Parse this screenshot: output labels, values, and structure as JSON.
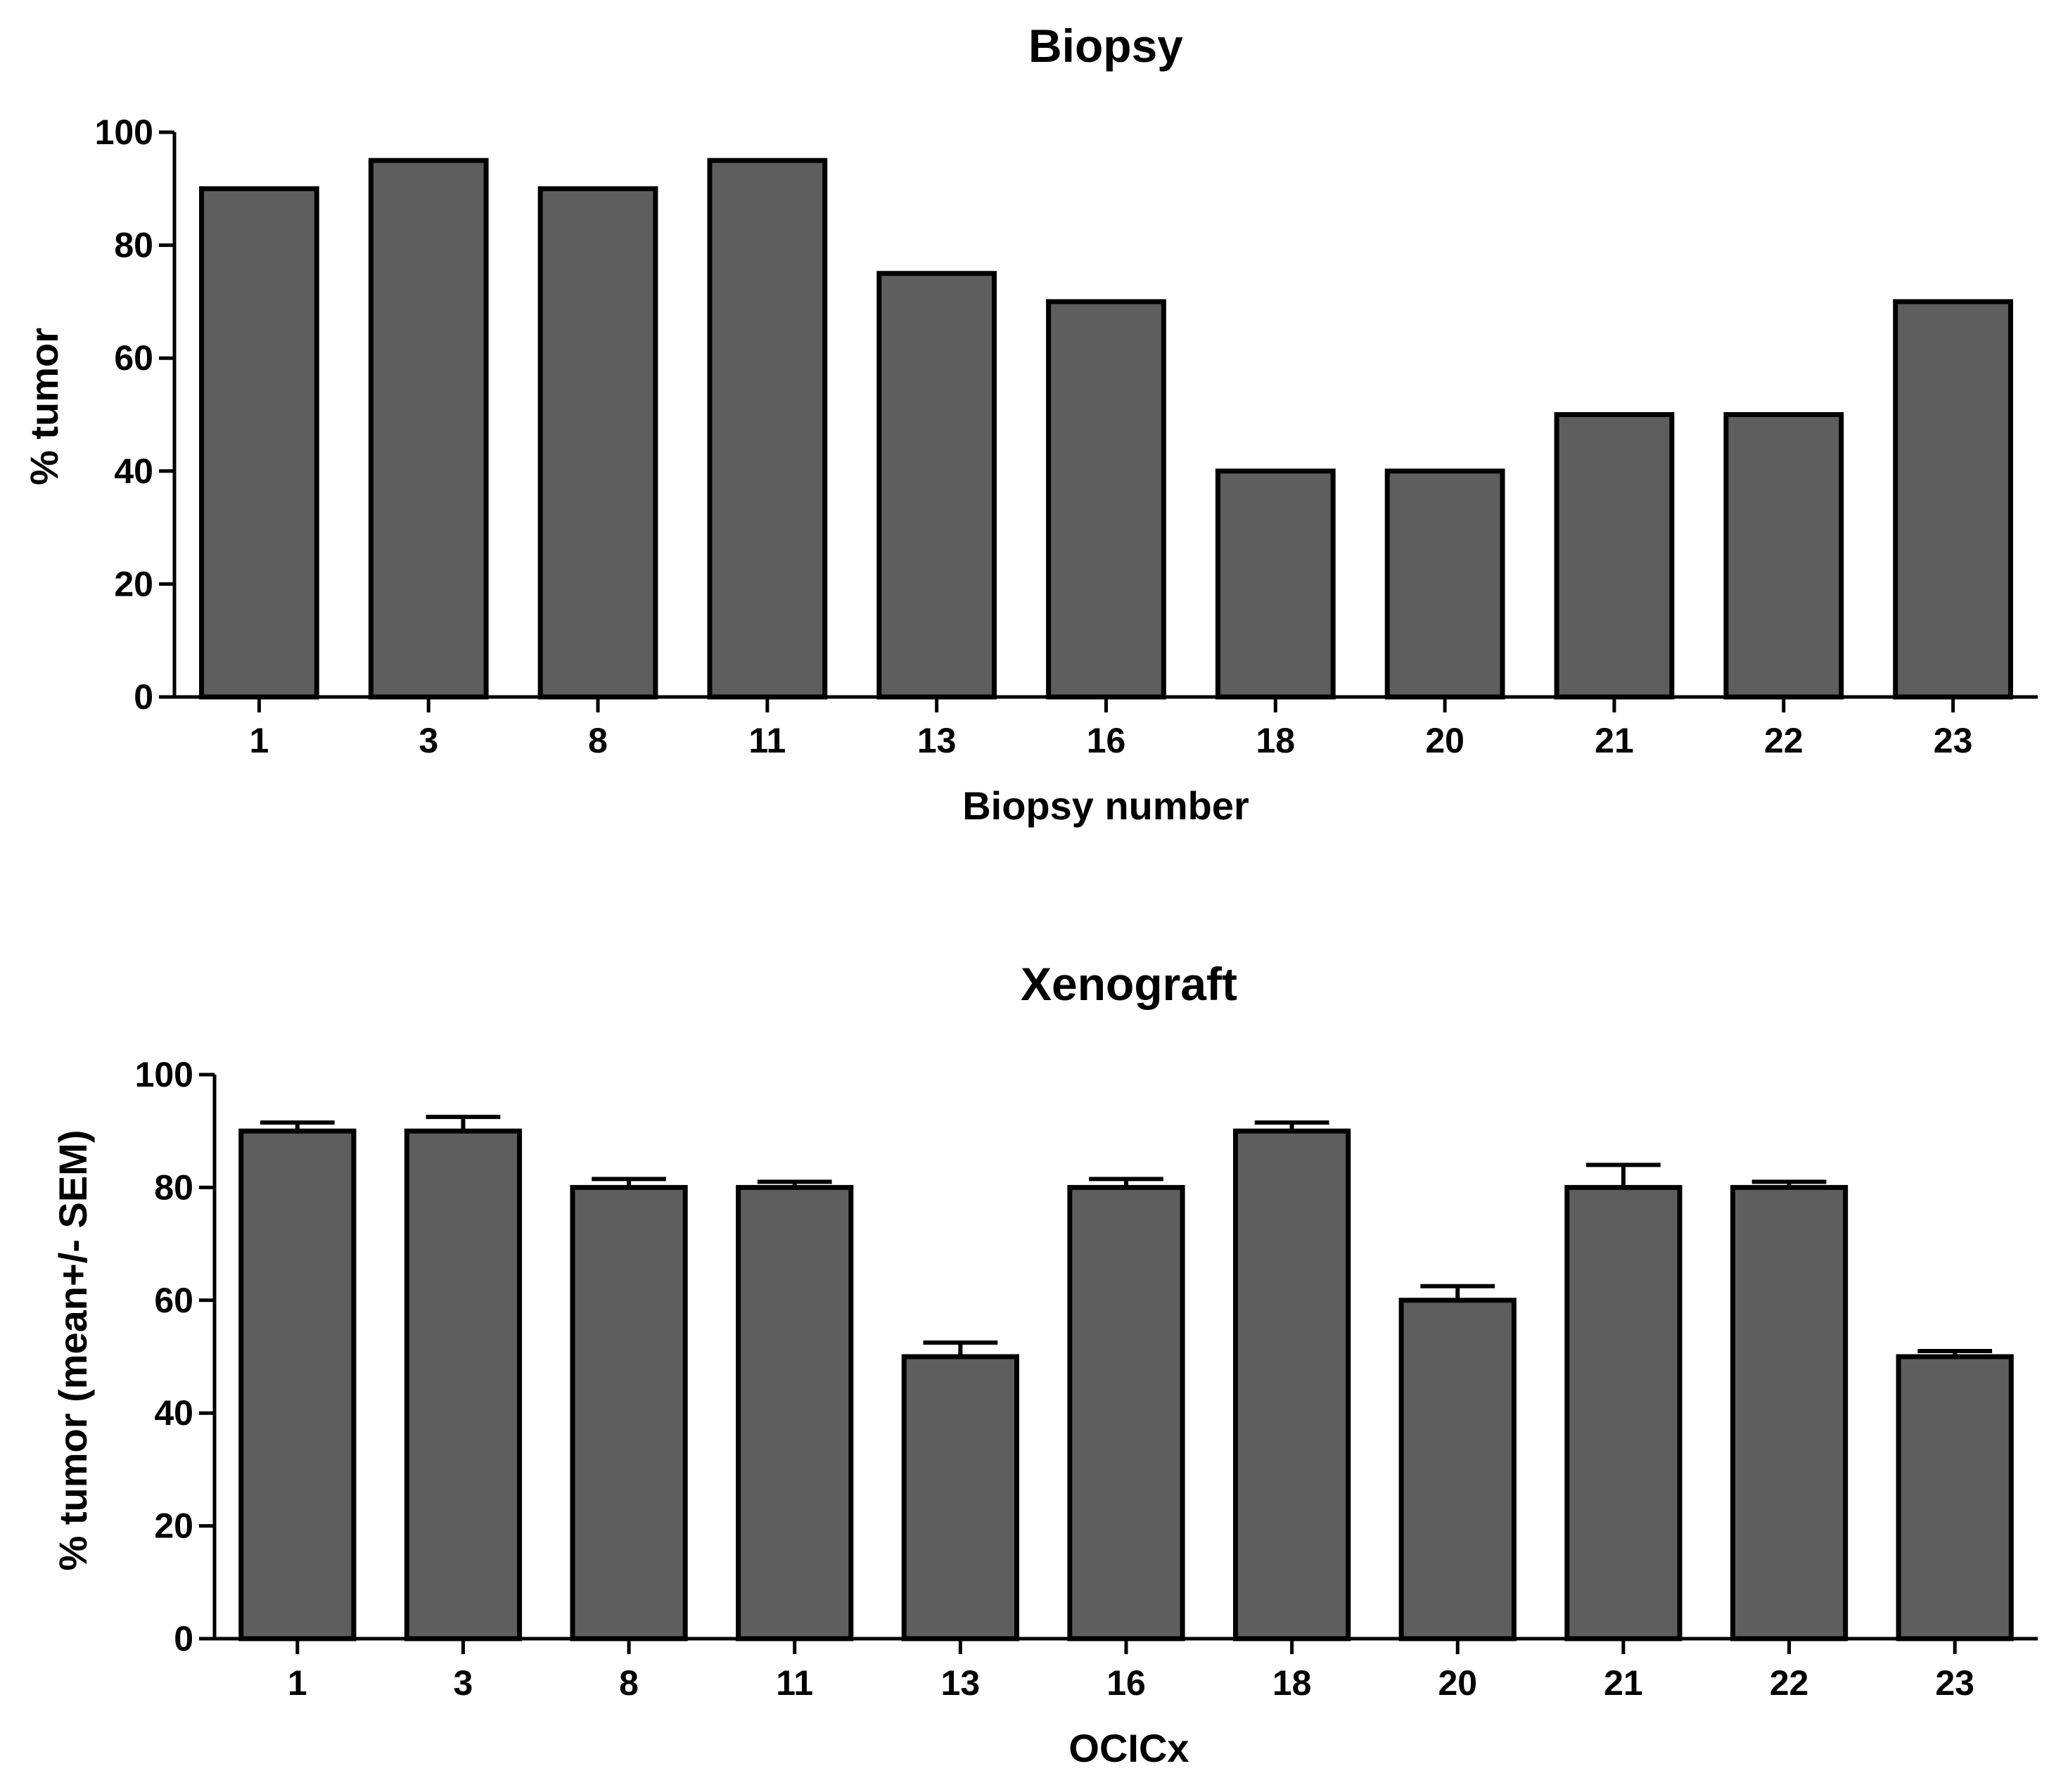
{
  "chart_data": [
    {
      "type": "bar",
      "title": "Biopsy",
      "xlabel": "Biopsy number",
      "ylabel": "% tumor",
      "ylim": [
        0,
        100
      ],
      "yticks": [
        0,
        20,
        40,
        60,
        80,
        100
      ],
      "categories": [
        "1",
        "3",
        "8",
        "11",
        "13",
        "16",
        "18",
        "20",
        "21",
        "22",
        "23"
      ],
      "values": [
        90,
        95,
        90,
        95,
        75,
        70,
        40,
        40,
        50,
        50,
        70
      ],
      "grid": false,
      "bar_color": "#5e5e5e"
    },
    {
      "type": "bar",
      "title": "Xenograft",
      "xlabel": "OCICx",
      "ylabel": "% tumor  (mean+/- SEM)",
      "ylim": [
        0,
        100
      ],
      "yticks": [
        0,
        20,
        40,
        60,
        80,
        100
      ],
      "categories": [
        "1",
        "3",
        "8",
        "11",
        "13",
        "16",
        "18",
        "20",
        "21",
        "22",
        "23"
      ],
      "values": [
        90,
        90,
        80,
        80,
        50,
        80,
        90,
        60,
        80,
        80,
        50
      ],
      "sem": [
        1.5,
        2.5,
        1.5,
        1,
        2.5,
        1.5,
        1.5,
        2.5,
        4,
        1,
        1
      ],
      "grid": false,
      "bar_color": "#5e5e5e"
    }
  ]
}
